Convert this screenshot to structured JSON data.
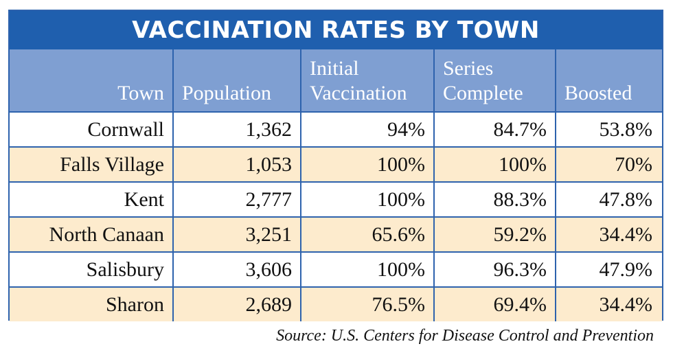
{
  "chart_data": {
    "type": "table",
    "title": "VACCINATION RATES BY TOWN",
    "columns": [
      "Town",
      "Population",
      "Initial Vaccination",
      "Series Complete",
      "Boosted"
    ],
    "header_lines": [
      [
        "Town"
      ],
      [
        "Population"
      ],
      [
        "Initial",
        "Vaccination"
      ],
      [
        "Series",
        "Complete"
      ],
      [
        "Boosted"
      ]
    ],
    "rows": [
      [
        "Cornwall",
        "1,362",
        "94%",
        "84.7%",
        "53.8%"
      ],
      [
        "Falls Village",
        "1,053",
        "100%",
        "100%",
        "70%"
      ],
      [
        "Kent",
        "2,777",
        "100%",
        "88.3%",
        "47.8%"
      ],
      [
        "North Canaan",
        "3,251",
        "65.6%",
        "59.2%",
        "34.4%"
      ],
      [
        "Salisbury",
        "3,606",
        "100%",
        "96.3%",
        "47.9%"
      ],
      [
        "Sharon",
        "2,689",
        "76.5%",
        "69.4%",
        "34.4%"
      ]
    ],
    "source": "Source: U.S. Centers for Disease Control and Prevention"
  },
  "colors": {
    "title_bar": "#1f5fae",
    "header_bg": "#7f9fd2",
    "border": "#2d62ad",
    "alt_row": "#fdebcd",
    "row": "#ffffff"
  }
}
